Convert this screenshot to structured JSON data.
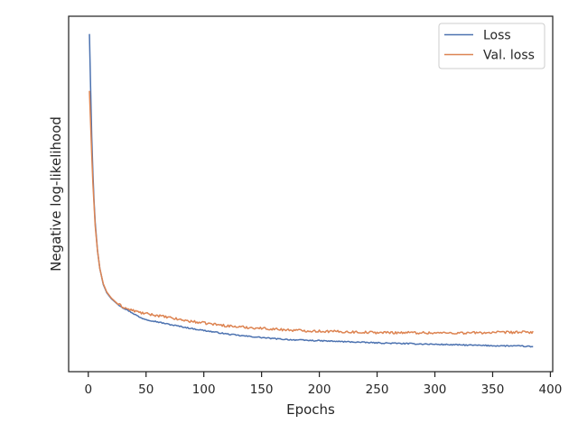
{
  "chart_data": {
    "type": "line",
    "title": "",
    "xlabel": "Epochs",
    "ylabel": "Negative log-likelihood",
    "xlim": [
      -17,
      402
    ],
    "ylim": [
      0,
      1
    ],
    "y_tick_labels_shown": false,
    "grid": false,
    "legend_position": "top-right",
    "xticks": [
      0,
      50,
      100,
      150,
      200,
      250,
      300,
      350,
      400
    ],
    "series": [
      {
        "name": "Loss",
        "color": "#4c72b0",
        "points": [
          [
            1,
            0.95
          ],
          [
            2,
            0.8
          ],
          [
            3,
            0.66
          ],
          [
            4,
            0.56
          ],
          [
            5,
            0.48
          ],
          [
            6,
            0.42
          ],
          [
            8,
            0.34
          ],
          [
            10,
            0.29
          ],
          [
            13,
            0.245
          ],
          [
            16,
            0.222
          ],
          [
            20,
            0.205
          ],
          [
            25,
            0.191
          ],
          [
            30,
            0.18
          ],
          [
            35,
            0.171
          ],
          [
            40,
            0.162
          ],
          [
            45,
            0.152
          ],
          [
            50,
            0.147
          ],
          [
            60,
            0.14
          ],
          [
            70,
            0.133
          ],
          [
            80,
            0.127
          ],
          [
            90,
            0.121
          ],
          [
            100,
            0.116
          ],
          [
            110,
            0.111
          ],
          [
            120,
            0.106
          ],
          [
            130,
            0.102
          ],
          [
            140,
            0.099
          ],
          [
            150,
            0.096
          ],
          [
            160,
            0.093
          ],
          [
            175,
            0.09
          ],
          [
            190,
            0.088
          ],
          [
            200,
            0.087
          ],
          [
            225,
            0.084
          ],
          [
            250,
            0.081
          ],
          [
            275,
            0.079
          ],
          [
            300,
            0.077
          ],
          [
            325,
            0.075
          ],
          [
            350,
            0.073
          ],
          [
            375,
            0.072
          ],
          [
            385,
            0.07
          ]
        ]
      },
      {
        "name": "Val. loss",
        "color": "#dd8452",
        "points": [
          [
            1,
            0.79
          ],
          [
            2,
            0.7
          ],
          [
            3,
            0.61
          ],
          [
            4,
            0.53
          ],
          [
            5,
            0.47
          ],
          [
            6,
            0.41
          ],
          [
            8,
            0.34
          ],
          [
            10,
            0.29
          ],
          [
            13,
            0.247
          ],
          [
            16,
            0.224
          ],
          [
            20,
            0.207
          ],
          [
            25,
            0.192
          ],
          [
            30,
            0.182
          ],
          [
            35,
            0.175
          ],
          [
            40,
            0.171
          ],
          [
            45,
            0.166
          ],
          [
            50,
            0.163
          ],
          [
            60,
            0.158
          ],
          [
            70,
            0.152
          ],
          [
            80,
            0.146
          ],
          [
            90,
            0.141
          ],
          [
            100,
            0.137
          ],
          [
            110,
            0.133
          ],
          [
            120,
            0.129
          ],
          [
            130,
            0.126
          ],
          [
            140,
            0.124
          ],
          [
            150,
            0.122
          ],
          [
            160,
            0.12
          ],
          [
            175,
            0.117
          ],
          [
            190,
            0.115
          ],
          [
            200,
            0.114
          ],
          [
            225,
            0.112
          ],
          [
            250,
            0.11
          ],
          [
            275,
            0.11
          ],
          [
            300,
            0.109
          ],
          [
            325,
            0.109
          ],
          [
            350,
            0.11
          ],
          [
            375,
            0.111
          ],
          [
            385,
            0.111
          ]
        ]
      }
    ]
  }
}
